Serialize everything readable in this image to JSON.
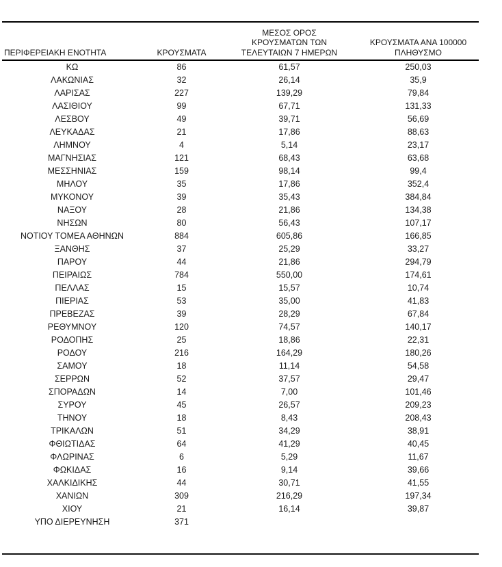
{
  "page": {
    "background": "#ffffff",
    "text_color": "#1a1a1a",
    "rule_color": "#000000"
  },
  "table": {
    "headers": {
      "region": "ΠΕΡΙΦΕΡΕΙΑΚΗ ΕΝΟΤΗΤΑ",
      "cases": "ΚΡΟΥΣΜΑΤΑ",
      "avg_7day": "ΜΕΣΟΣ ΟΡΟΣ\nΚΡΟΥΣΜΑΤΩΝ ΤΩΝ\nΤΕΛΕΥΤΑΙΩΝ 7 ΗΜΕΡΩΝ",
      "per_100k": "ΚΡΟΥΣΜΑΤΑ ΑΝΑ 100000\nΠΛΗΘΥΣΜΟ"
    },
    "rows": [
      {
        "region": "ΚΩ",
        "cases": "86",
        "avg_7day": "61,57",
        "per_100k": "250,03"
      },
      {
        "region": "ΛΑΚΩΝΙΑΣ",
        "cases": "32",
        "avg_7day": "26,14",
        "per_100k": "35,9"
      },
      {
        "region": "ΛΑΡΙΣΑΣ",
        "cases": "227",
        "avg_7day": "139,29",
        "per_100k": "79,84"
      },
      {
        "region": "ΛΑΣΙΘΙΟΥ",
        "cases": "99",
        "avg_7day": "67,71",
        "per_100k": "131,33"
      },
      {
        "region": "ΛΕΣΒΟΥ",
        "cases": "49",
        "avg_7day": "39,71",
        "per_100k": "56,69"
      },
      {
        "region": "ΛΕΥΚΑΔΑΣ",
        "cases": "21",
        "avg_7day": "17,86",
        "per_100k": "88,63"
      },
      {
        "region": "ΛΗΜΝΟΥ",
        "cases": "4",
        "avg_7day": "5,14",
        "per_100k": "23,17"
      },
      {
        "region": "ΜΑΓΝΗΣΙΑΣ",
        "cases": "121",
        "avg_7day": "68,43",
        "per_100k": "63,68"
      },
      {
        "region": "ΜΕΣΣΗΝΙΑΣ",
        "cases": "159",
        "avg_7day": "98,14",
        "per_100k": "99,4"
      },
      {
        "region": "ΜΗΛΟΥ",
        "cases": "35",
        "avg_7day": "17,86",
        "per_100k": "352,4"
      },
      {
        "region": "ΜΥΚΟΝΟΥ",
        "cases": "39",
        "avg_7day": "35,43",
        "per_100k": "384,84"
      },
      {
        "region": "ΝΑΞΟΥ",
        "cases": "28",
        "avg_7day": "21,86",
        "per_100k": "134,38"
      },
      {
        "region": "ΝΗΣΩΝ",
        "cases": "80",
        "avg_7day": "56,43",
        "per_100k": "107,17"
      },
      {
        "region": "ΝΟΤΙΟΥ ΤΟΜΕΑ ΑΘΗΝΩΝ",
        "cases": "884",
        "avg_7day": "605,86",
        "per_100k": "166,85"
      },
      {
        "region": "ΞΑΝΘΗΣ",
        "cases": "37",
        "avg_7day": "25,29",
        "per_100k": "33,27"
      },
      {
        "region": "ΠΑΡΟΥ",
        "cases": "44",
        "avg_7day": "21,86",
        "per_100k": "294,79"
      },
      {
        "region": "ΠΕΙΡΑΙΩΣ",
        "cases": "784",
        "avg_7day": "550,00",
        "per_100k": "174,61"
      },
      {
        "region": "ΠΕΛΛΑΣ",
        "cases": "15",
        "avg_7day": "15,57",
        "per_100k": "10,74"
      },
      {
        "region": "ΠΙΕΡΙΑΣ",
        "cases": "53",
        "avg_7day": "35,00",
        "per_100k": "41,83"
      },
      {
        "region": "ΠΡΕΒΕΖΑΣ",
        "cases": "39",
        "avg_7day": "28,29",
        "per_100k": "67,84"
      },
      {
        "region": "ΡΕΘΥΜΝΟΥ",
        "cases": "120",
        "avg_7day": "74,57",
        "per_100k": "140,17"
      },
      {
        "region": "ΡΟΔΟΠΗΣ",
        "cases": "25",
        "avg_7day": "18,86",
        "per_100k": "22,31"
      },
      {
        "region": "ΡΟΔΟΥ",
        "cases": "216",
        "avg_7day": "164,29",
        "per_100k": "180,26"
      },
      {
        "region": "ΣΑΜΟΥ",
        "cases": "18",
        "avg_7day": "11,14",
        "per_100k": "54,58"
      },
      {
        "region": "ΣΕΡΡΩΝ",
        "cases": "52",
        "avg_7day": "37,57",
        "per_100k": "29,47"
      },
      {
        "region": "ΣΠΟΡΑΔΩΝ",
        "cases": "14",
        "avg_7day": "7,00",
        "per_100k": "101,46"
      },
      {
        "region": "ΣΥΡΟΥ",
        "cases": "45",
        "avg_7day": "26,57",
        "per_100k": "209,23"
      },
      {
        "region": "ΤΗΝΟΥ",
        "cases": "18",
        "avg_7day": "8,43",
        "per_100k": "208,43"
      },
      {
        "region": "ΤΡΙΚΑΛΩΝ",
        "cases": "51",
        "avg_7day": "34,29",
        "per_100k": "38,91"
      },
      {
        "region": "ΦΘΙΩΤΙΔΑΣ",
        "cases": "64",
        "avg_7day": "41,29",
        "per_100k": "40,45"
      },
      {
        "region": "ΦΛΩΡΙΝΑΣ",
        "cases": "6",
        "avg_7day": "5,29",
        "per_100k": "11,67"
      },
      {
        "region": "ΦΩΚΙΔΑΣ",
        "cases": "16",
        "avg_7day": "9,14",
        "per_100k": "39,66"
      },
      {
        "region": "ΧΑΛΚΙΔΙΚΗΣ",
        "cases": "44",
        "avg_7day": "30,71",
        "per_100k": "41,55"
      },
      {
        "region": "ΧΑΝΙΩΝ",
        "cases": "309",
        "avg_7day": "216,29",
        "per_100k": "197,34"
      },
      {
        "region": "ΧΙΟΥ",
        "cases": "21",
        "avg_7day": "16,14",
        "per_100k": "39,87"
      },
      {
        "region": "ΥΠΟ ΔΙΕΡΕΥΝΗΣΗ",
        "cases": "371",
        "avg_7day": "",
        "per_100k": ""
      }
    ]
  }
}
